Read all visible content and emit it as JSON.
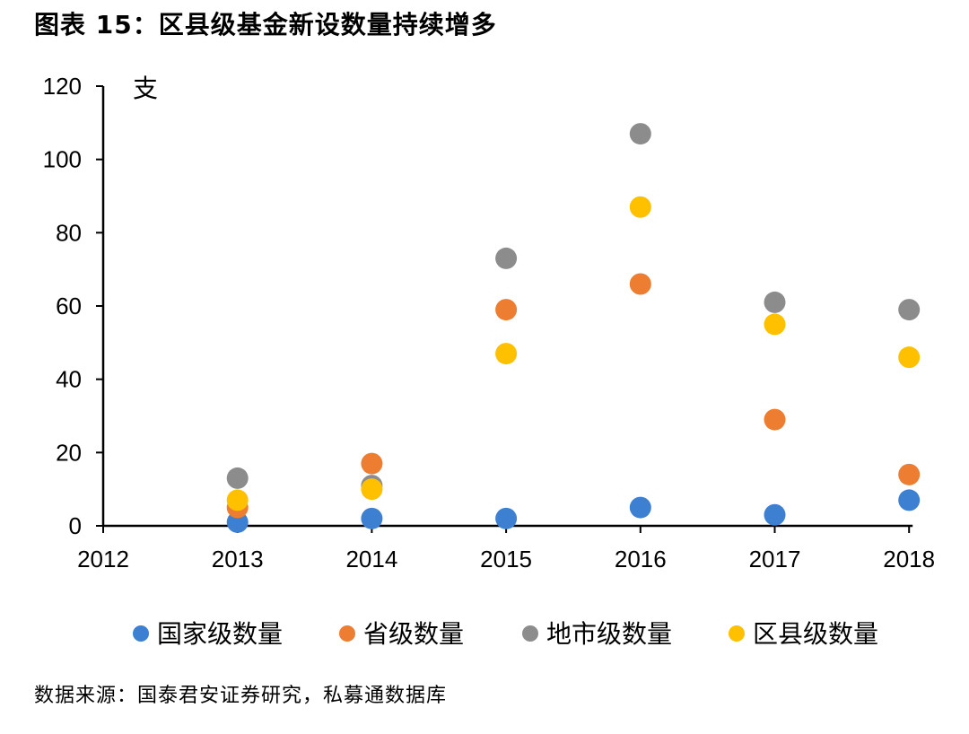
{
  "title": "图表 15：区县级基金新设数量持续增多",
  "source": "数据来源：国泰君安证券研究，私募通数据库",
  "chart_data": {
    "type": "scatter",
    "x": [
      "2012",
      "2013",
      "2014",
      "2015",
      "2016",
      "2017",
      "2018"
    ],
    "ylabel": "支",
    "ylim": [
      0,
      120
    ],
    "yticks": [
      0,
      20,
      40,
      60,
      80,
      100,
      120
    ],
    "grid": false,
    "legend_position": "bottom",
    "series": [
      {
        "name": "国家级数量",
        "color": "#3d7fd1",
        "values": [
          null,
          1,
          2,
          2,
          5,
          3,
          7
        ]
      },
      {
        "name": "省级数量",
        "color": "#ed7d31",
        "values": [
          null,
          5,
          17,
          59,
          66,
          29,
          14
        ]
      },
      {
        "name": "地市级数量",
        "color": "#8c8c8c",
        "values": [
          null,
          13,
          11,
          73,
          107,
          61,
          59
        ]
      },
      {
        "name": "区县级数量",
        "color": "#ffc000",
        "values": [
          null,
          7,
          10,
          47,
          87,
          55,
          46
        ]
      }
    ]
  }
}
